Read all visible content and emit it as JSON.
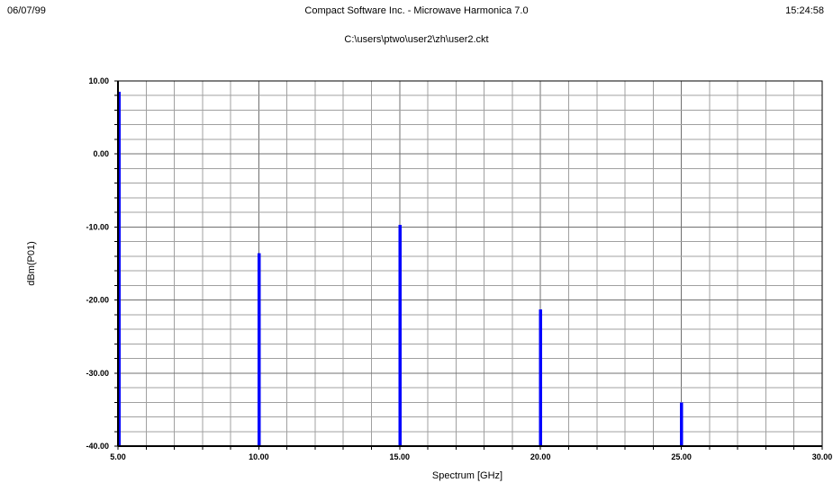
{
  "header": {
    "date": "06/07/99",
    "title": "Compact Software Inc. - Microwave Harmonica 7.0",
    "time": "15:24:58",
    "file_path": "C:\\users\\ptwo\\user2\\zh\\user2.ckt"
  },
  "chart_data": {
    "type": "bar",
    "title": "",
    "xlabel": "Spectrum [GHz]",
    "ylabel": "dBm(P01)",
    "xlim": [
      5,
      30
    ],
    "ylim": [
      -40,
      10
    ],
    "x_ticks": [
      "5.00",
      "10.00",
      "15.00",
      "20.00",
      "25.00",
      "30.00"
    ],
    "y_ticks": [
      "10.00",
      "0.00",
      "-10.00",
      "-20.00",
      "-30.00",
      "-40.00"
    ],
    "grid": true,
    "series": [
      {
        "x": [
          5,
          10,
          15,
          20,
          25
        ],
        "values": [
          8.5,
          -13.6,
          -9.7,
          -21.3,
          -34.0
        ]
      }
    ],
    "colors": {
      "bar": "#0000ff",
      "grid": "#a0a0a0",
      "axis": "#000000"
    }
  }
}
